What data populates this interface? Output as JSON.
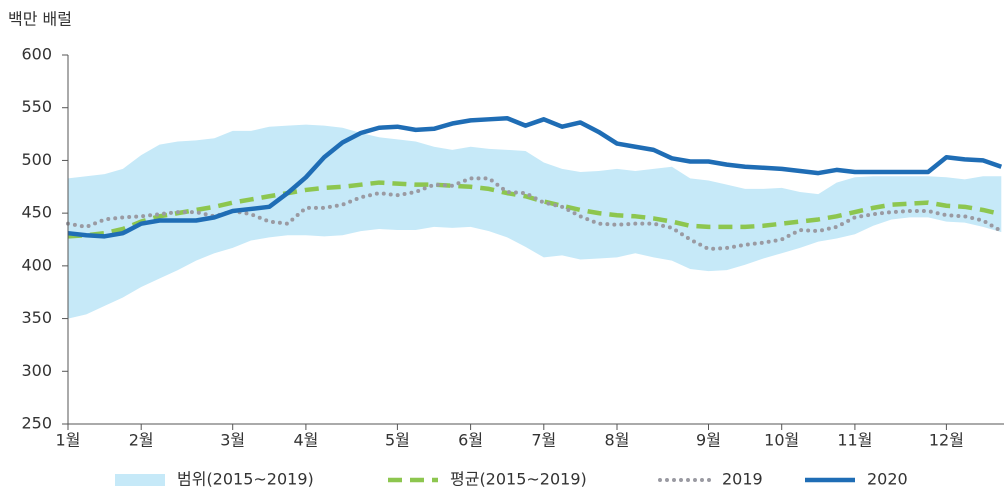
{
  "chart_data": {
    "type": "line",
    "ylabel": "백만 배럴",
    "categories": [
      "1월",
      null,
      null,
      null,
      "2월",
      null,
      null,
      null,
      null,
      "3월",
      null,
      null,
      null,
      "4월",
      null,
      null,
      null,
      null,
      "5월",
      null,
      null,
      null,
      "6월",
      null,
      null,
      null,
      "7월",
      null,
      null,
      null,
      "8월",
      null,
      null,
      null,
      null,
      "9월",
      null,
      null,
      null,
      "10월",
      null,
      null,
      null,
      "11월",
      null,
      null,
      null,
      null,
      "12월",
      null,
      null,
      null
    ],
    "ylim": [
      250,
      600
    ],
    "yticks": [
      250,
      300,
      350,
      400,
      450,
      500,
      550,
      600
    ],
    "series": [
      {
        "name": "범위(2015~2019)",
        "style": "band",
        "color": "#c6e9f8",
        "low": [
          350,
          354,
          362,
          370,
          380,
          388,
          396,
          405,
          412,
          417,
          424,
          427,
          429,
          429,
          428,
          429,
          433,
          435,
          434,
          434,
          437,
          436,
          437,
          433,
          427,
          418,
          408,
          410,
          406,
          407,
          408,
          412,
          408,
          405,
          397,
          395,
          396,
          401,
          407,
          412,
          417,
          423,
          426,
          430,
          438,
          444,
          446,
          446,
          442,
          441,
          437,
          432
        ],
        "high": [
          483,
          485,
          487,
          492,
          505,
          515,
          518,
          519,
          521,
          528,
          528,
          532,
          533,
          534,
          533,
          531,
          526,
          522,
          520,
          518,
          513,
          510,
          513,
          511,
          510,
          509,
          498,
          492,
          489,
          490,
          492,
          490,
          492,
          494,
          483,
          481,
          477,
          473,
          473,
          474,
          470,
          468,
          479,
          484,
          485,
          485,
          485,
          485,
          484,
          482,
          485,
          485
        ]
      },
      {
        "name": "평균(2015~2019)",
        "style": "dashed",
        "color": "#8dc64f",
        "values": [
          428,
          429,
          431,
          435,
          442,
          447,
          450,
          453,
          456,
          460,
          463,
          466,
          469,
          472,
          474,
          475,
          477,
          479,
          478,
          477,
          477,
          476,
          475,
          473,
          469,
          466,
          461,
          457,
          453,
          450,
          448,
          447,
          445,
          442,
          438,
          437,
          437,
          437,
          438,
          440,
          442,
          444,
          447,
          451,
          455,
          458,
          459,
          460,
          457,
          456,
          453,
          449
        ]
      },
      {
        "name": "2019",
        "style": "dotted",
        "color": "#9a9aa2",
        "values": [
          440,
          437,
          444,
          446,
          447,
          449,
          451,
          451,
          447,
          452,
          449,
          442,
          440,
          455,
          455,
          458,
          465,
          469,
          467,
          470,
          477,
          476,
          483,
          483,
          470,
          469,
          460,
          456,
          447,
          440,
          439,
          440,
          440,
          436,
          425,
          416,
          417,
          420,
          422,
          425,
          434,
          433,
          437,
          446,
          449,
          451,
          452,
          452,
          448,
          447,
          443,
          433
        ]
      },
      {
        "name": "2020",
        "style": "solid",
        "color": "#1f6db5",
        "values": [
          431,
          429,
          428,
          431,
          440,
          443,
          443,
          443,
          446,
          452,
          454,
          456,
          469,
          484,
          503,
          517,
          526,
          531,
          532,
          529,
          530,
          535,
          538,
          539,
          540,
          533,
          539,
          532,
          536,
          527,
          516,
          513,
          510,
          502,
          499,
          499,
          496,
          494,
          493,
          492,
          490,
          488,
          491,
          489,
          489,
          489,
          489,
          489,
          503,
          501,
          500,
          494
        ]
      }
    ]
  }
}
